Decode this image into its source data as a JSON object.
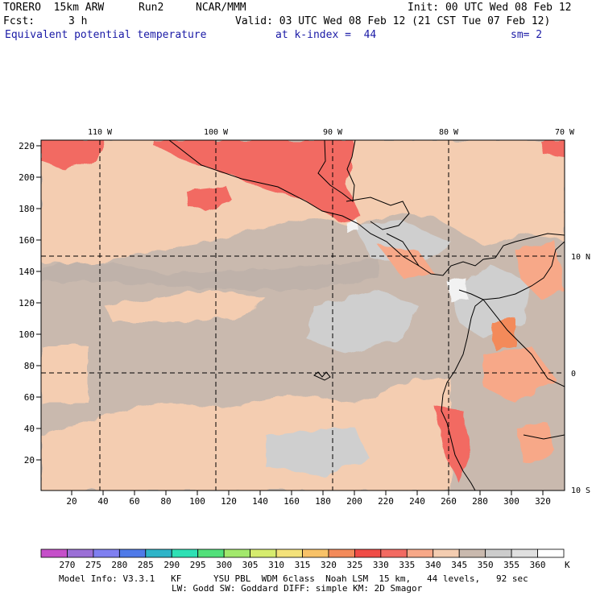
{
  "header": {
    "model_name": "TORERO  15km ARW",
    "run": "Run2",
    "org": "NCAR/MMM",
    "init": "Init: 00 UTC Wed 08 Feb 12",
    "fcst_label": "Fcst:",
    "fcst_value": "3 h",
    "valid": "Valid: 03 UTC Wed 08 Feb 12 (21 CST Tue 07 Feb 12)",
    "field": "Equivalent potential temperature",
    "level": "at k-index =  44",
    "smoothing": "sm= 2"
  },
  "map": {
    "top_lon_labels": [
      "110 W",
      "100 W",
      "90 W",
      "80 W",
      "70 W"
    ],
    "right_lat_labels": [
      "10 N",
      "0",
      "10 S"
    ],
    "y_ticks": [
      "220",
      "200",
      "180",
      "160",
      "140",
      "120",
      "100",
      "80",
      "60",
      "40",
      "20"
    ],
    "x_ticks": [
      "20",
      "40",
      "60",
      "80",
      "100",
      "120",
      "140",
      "160",
      "180",
      "200",
      "220",
      "240",
      "260",
      "280",
      "300",
      "320"
    ]
  },
  "colorbar": {
    "labels": [
      "270",
      "275",
      "280",
      "285",
      "290",
      "295",
      "300",
      "305",
      "310",
      "315",
      "320",
      "325",
      "330",
      "335",
      "340",
      "345",
      "350",
      "355",
      "360"
    ],
    "unit": "K",
    "colors": [
      "#c54fc9",
      "#9b6fd6",
      "#7f7ff0",
      "#4f7ae8",
      "#2fb4c8",
      "#2ee0b4",
      "#52e07a",
      "#a2e86c",
      "#d6ec6e",
      "#f4e27a",
      "#f8c268",
      "#f38a5a",
      "#f04c46",
      "#f26a62",
      "#f7a888",
      "#f4cdb1",
      "#c9b9ae",
      "#cccccc",
      "#e0e0e0",
      "#ffffff"
    ]
  },
  "footer": {
    "line1": "Model Info: V3.3.1   KF      YSU PBL  WDM 6class  Noah LSM  15 km,   44 levels,   92 sec",
    "line2": "LW: Godd SW: Goddard DIFF: simple KM: 2D Smagor"
  }
}
